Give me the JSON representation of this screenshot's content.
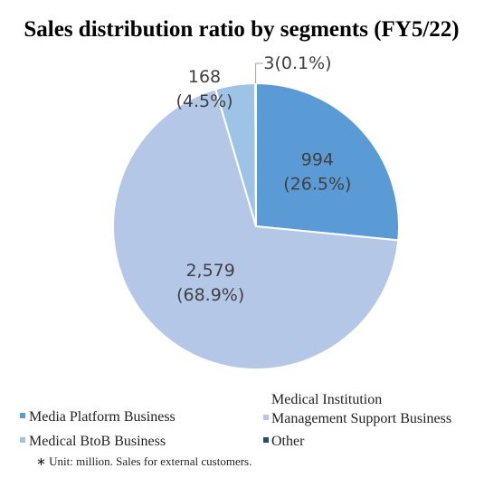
{
  "chart_data": {
    "type": "pie",
    "title": "Sales distribution ratio by segments (FY5/22)",
    "slices": [
      {
        "name": "Media Platform Business",
        "value": 994,
        "value_label": "994",
        "percent_label": "(26.5%)",
        "color": "#5b9bd5"
      },
      {
        "name": "Medical Institution Management Support Business",
        "name_lines": [
          "Medical Institution",
          "Management Support Business"
        ],
        "value": 2579,
        "value_label": "2,579",
        "percent_label": "(68.9%)",
        "color": "#b4c7e7"
      },
      {
        "name": "Medical BtoB Business",
        "value": 168,
        "value_label": "168",
        "percent_label": "(4.5%)",
        "color": "#9dc3e6"
      },
      {
        "name": "Other",
        "value": 3,
        "value_label": "3",
        "percent_label": "(0.1%)",
        "color": "#1f4e79"
      }
    ],
    "legend_position": "bottom",
    "note": "∗ Unit: million. Sales for external customers."
  }
}
